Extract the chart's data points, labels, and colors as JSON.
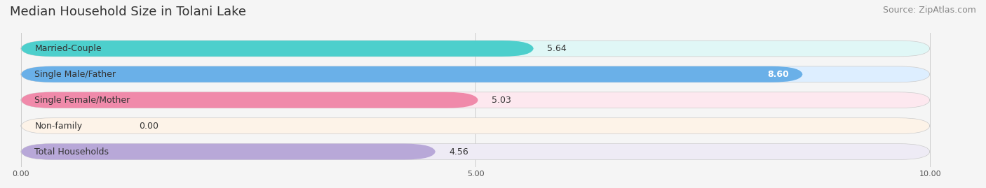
{
  "title": "Median Household Size in Tolani Lake",
  "source": "Source: ZipAtlas.com",
  "categories": [
    "Married-Couple",
    "Single Male/Father",
    "Single Female/Mother",
    "Non-family",
    "Total Households"
  ],
  "values": [
    5.64,
    8.6,
    5.03,
    0.0,
    4.56
  ],
  "bar_colors": [
    "#4dcfcc",
    "#6ab0e8",
    "#f08aaa",
    "#f5c896",
    "#b8a8d8"
  ],
  "bar_bg_colors": [
    "#e0f7f6",
    "#ddeeff",
    "#fde8ef",
    "#fdf3e8",
    "#eeebf5"
  ],
  "xlim": [
    0,
    10
  ],
  "xtick_labels": [
    "0.00",
    "5.00",
    "10.00"
  ],
  "title_fontsize": 13,
  "source_fontsize": 9,
  "bar_label_fontsize": 9,
  "category_fontsize": 9,
  "figsize": [
    14.06,
    2.69
  ],
  "dpi": 100
}
